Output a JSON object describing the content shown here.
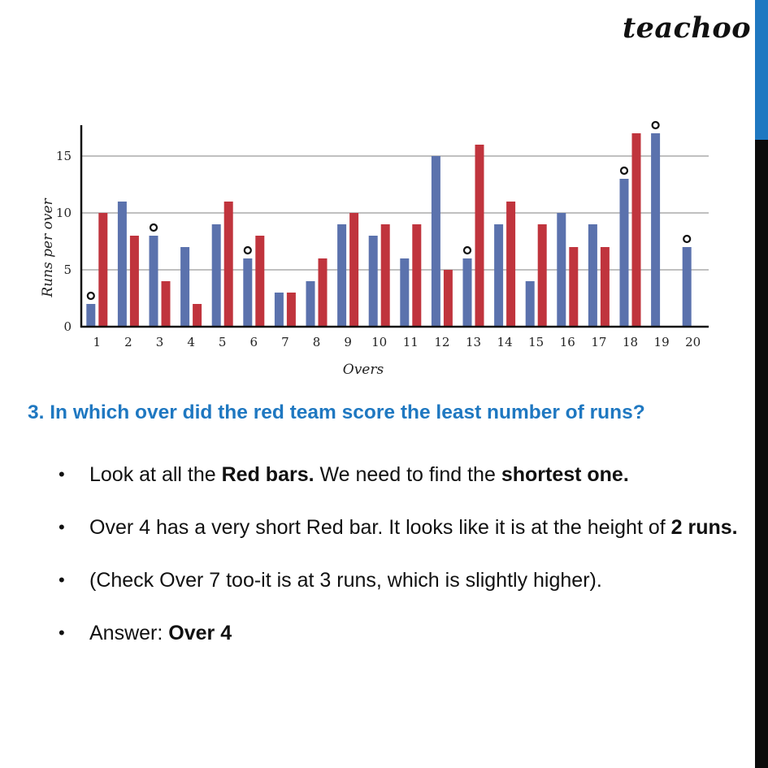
{
  "brand": {
    "logo_text": "teachoo"
  },
  "colors": {
    "blue": "#5b72ad",
    "red": "#c0343d",
    "accent": "#1f78c1",
    "sidebar": "#0b0b0b"
  },
  "chart_data": {
    "type": "bar",
    "title": "",
    "xlabel": "Overs",
    "ylabel": "Runs per over",
    "ylim": [
      0,
      17.5
    ],
    "yticks": [
      0,
      5,
      10,
      15
    ],
    "grid": true,
    "legend": "none",
    "categories": [
      "1",
      "2",
      "3",
      "4",
      "5",
      "6",
      "7",
      "8",
      "9",
      "10",
      "11",
      "12",
      "13",
      "14",
      "15",
      "16",
      "17",
      "18",
      "19",
      "20"
    ],
    "series": [
      {
        "color": "#5b72ad",
        "values": [
          2,
          11,
          8,
          7,
          9,
          6,
          3,
          4,
          9,
          8,
          6,
          15,
          6,
          9,
          4,
          10,
          9,
          13,
          17,
          7
        ]
      },
      {
        "color": "#c0343d",
        "values": [
          10,
          8,
          4,
          2,
          11,
          8,
          3,
          6,
          10,
          9,
          9,
          5,
          16,
          11,
          9,
          7,
          7,
          17,
          null,
          null
        ]
      }
    ],
    "markers": {
      "symbol": "circle",
      "on_series": 0,
      "overs": [
        1,
        3,
        6,
        13,
        18,
        19,
        20
      ]
    }
  },
  "question": "3. In which over did the red team score the least number of runs?",
  "bullets": [
    {
      "parts": [
        {
          "t": "Look at all the "
        },
        {
          "t": "Red bars.",
          "b": true
        },
        {
          "t": " We need to find the "
        },
        {
          "t": "shortest one.",
          "b": true
        }
      ]
    },
    {
      "parts": [
        {
          "t": "Over 4 has a very short Red bar. It looks like it is at the height of "
        },
        {
          "t": "2 runs.",
          "b": true
        }
      ]
    },
    {
      "parts": [
        {
          "t": "(Check Over 7 too-it is at 3 runs, which is slightly higher)."
        }
      ]
    },
    {
      "parts": [
        {
          "t": "Answer: "
        },
        {
          "t": "Over 4",
          "b": true
        }
      ]
    }
  ]
}
